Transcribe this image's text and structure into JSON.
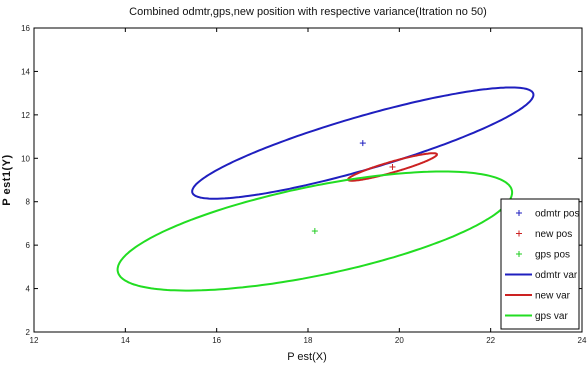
{
  "chart_data": {
    "type": "scatter",
    "title": "Combined odmtr,gps,new position with respective variance(Itration no 50)",
    "xlabel": "P est(X)",
    "ylabel": "P est1(Y)",
    "xlim": [
      12,
      24
    ],
    "ylim": [
      2,
      16
    ],
    "xticks": [
      12,
      14,
      16,
      18,
      20,
      22,
      24
    ],
    "yticks": [
      2,
      4,
      6,
      8,
      10,
      12,
      14,
      16
    ],
    "grid": false,
    "legend_position": "bottom-right",
    "points": [
      {
        "name": "odmtr pos",
        "x": 19.2,
        "y": 10.7,
        "color": "#1f1fbf",
        "marker": "+"
      },
      {
        "name": "new pos",
        "x": 19.85,
        "y": 9.6,
        "color": "#cc2222",
        "marker": "+"
      },
      {
        "name": "gps pos",
        "x": 18.15,
        "y": 6.65,
        "color": "#22cc22",
        "marker": "+"
      }
    ],
    "ellipses": [
      {
        "name": "odmtr var",
        "color": "#1f1fbf",
        "center": [
          19.2,
          10.7
        ],
        "semi_major": 4.4,
        "semi_minor": 1.08,
        "angle_deg": 33
      },
      {
        "name": "new var",
        "color": "#cc2222",
        "center": [
          19.85,
          9.6
        ],
        "semi_major": 1.14,
        "semi_minor": 0.22,
        "angle_deg": 32
      },
      {
        "name": "gps var",
        "color": "#22dd22",
        "center": [
          18.15,
          6.65
        ],
        "semi_major": 4.75,
        "semi_minor": 1.9,
        "angle_deg": 27
      }
    ]
  }
}
